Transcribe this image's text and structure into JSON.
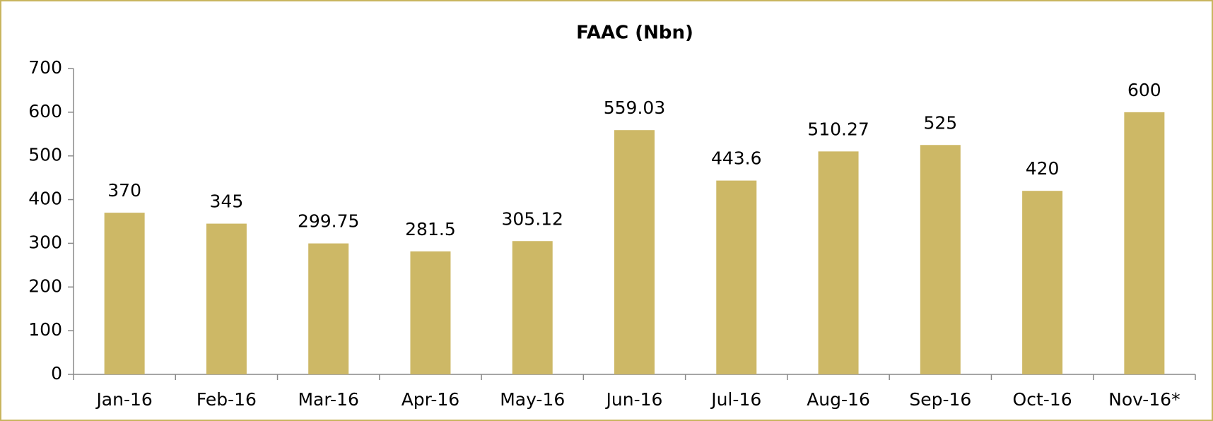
{
  "chart_data": {
    "type": "bar",
    "title": "FAAC (Nbn)",
    "categories": [
      "Jan-16",
      "Feb-16",
      "Mar-16",
      "Apr-16",
      "May-16",
      "Jun-16",
      "Jul-16",
      "Aug-16",
      "Sep-16",
      "Oct-16",
      "Nov-16*"
    ],
    "values": [
      370,
      345,
      299.75,
      281.5,
      305.12,
      559.03,
      443.6,
      510.27,
      525,
      420,
      600
    ],
    "color": "#cdb866",
    "ylim": [
      0,
      700
    ],
    "yticks": [
      0,
      100,
      200,
      300,
      400,
      500,
      600,
      700
    ],
    "grid": false
  }
}
